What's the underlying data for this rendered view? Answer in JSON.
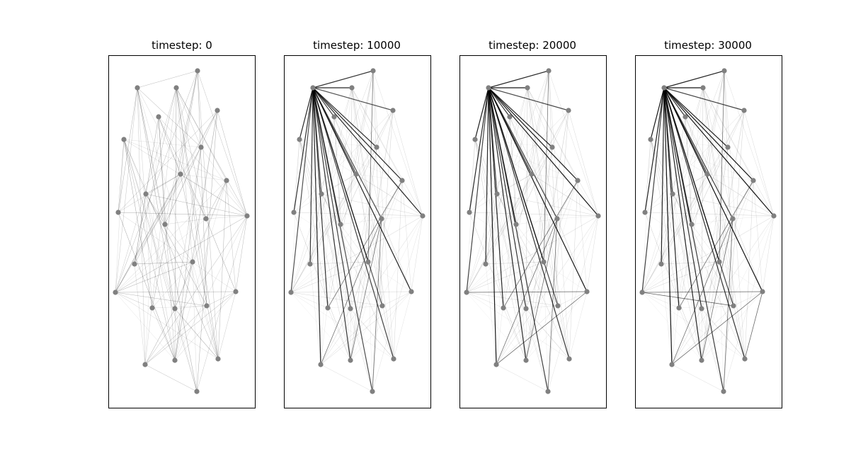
{
  "figure": {
    "panels": [
      {
        "title": "timestep: 0"
      },
      {
        "title": "timestep: 10000"
      },
      {
        "title": "timestep: 20000"
      },
      {
        "title": "timestep: 30000"
      }
    ]
  },
  "colors": {
    "node": "#808080",
    "edge": "#000000",
    "frame": "#000000",
    "background": "#ffffff"
  }
}
